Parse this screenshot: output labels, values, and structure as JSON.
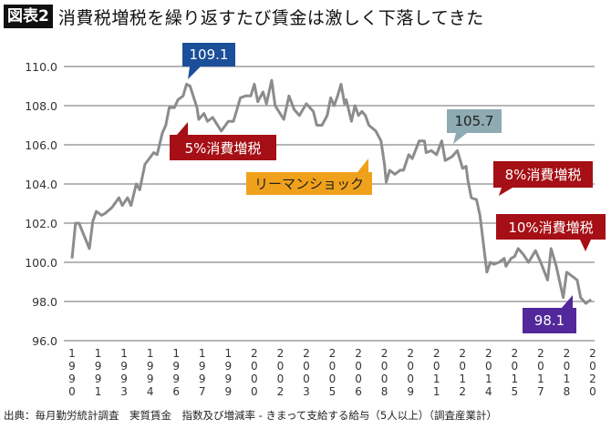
{
  "figure_label": "図表2",
  "title": "消費税増税を繰り返すたび賃金は激しく下落してきた",
  "source": "出典：毎月勤労統計調査　実質賃金　指数及び増減率 - きまって支給する給与（5人以上）（調査産業計）",
  "colors": {
    "line": "#8c8c8c",
    "grid": "#8a8a8a",
    "peak": "#1c4f9a",
    "tax": "#a50f15",
    "lehman": "#f0a11b",
    "mid": "#8eaab2",
    "last": "#52289a"
  },
  "annotations": [
    {
      "id": "peak",
      "text": "109.1",
      "color_key": "peak",
      "text_color": "#ffffff"
    },
    {
      "id": "tax5",
      "text": "5%消費増税",
      "color_key": "tax",
      "text_color": "#ffffff"
    },
    {
      "id": "lehman",
      "text": "リーマンショック",
      "color_key": "lehman",
      "text_color": "#222222"
    },
    {
      "id": "mid",
      "text": "105.7",
      "color_key": "mid",
      "text_color": "#222222"
    },
    {
      "id": "tax8",
      "text": "8%消費増税",
      "color_key": "tax",
      "text_color": "#ffffff"
    },
    {
      "id": "tax10",
      "text": "10%消費増税",
      "color_key": "tax",
      "text_color": "#ffffff"
    },
    {
      "id": "last",
      "text": "98.1",
      "color_key": "last",
      "text_color": "#ffffff"
    }
  ],
  "chart_data": {
    "type": "line",
    "title": "消費税増税を繰り返すたび賃金は激しく下落してきた",
    "xlabel": "",
    "ylabel": "",
    "ylim": [
      96.0,
      110.0
    ],
    "xlim": [
      1990,
      2020
    ],
    "grid": true,
    "yticks": [
      "96.0",
      "98.0",
      "100.0",
      "102.0",
      "104.0",
      "106.0",
      "108.0",
      "110.0"
    ],
    "xtick_labels": [
      "1990",
      "1991",
      "1993",
      "1994",
      "1996",
      "1997",
      "1999",
      "2000",
      "2002",
      "2003",
      "2005",
      "2006",
      "2008",
      "2009",
      "2011",
      "2012",
      "2014",
      "2015",
      "2017",
      "2018",
      "2020"
    ],
    "x": [
      1990.0,
      1990.2,
      1990.4,
      1991.0,
      1991.2,
      1991.4,
      1991.7,
      1991.9,
      1992.3,
      1992.7,
      1992.9,
      1993.2,
      1993.4,
      1993.7,
      1993.9,
      1994.2,
      1994.7,
      1994.9,
      1995.2,
      1995.4,
      1995.6,
      1995.9,
      1996.1,
      1996.4,
      1996.6,
      1996.8,
      1997.2,
      1997.3,
      1997.6,
      1997.8,
      1998.1,
      1998.6,
      1999.0,
      1999.3,
      1999.7,
      2000.0,
      2000.3,
      2000.5,
      2000.7,
      2001.0,
      2001.2,
      2001.5,
      2001.7,
      2002.2,
      2002.5,
      2002.8,
      2003.1,
      2003.5,
      2003.9,
      2004.1,
      2004.4,
      2004.7,
      2004.9,
      2005.1,
      2005.3,
      2005.5,
      2005.7,
      2005.8,
      2006.1,
      2006.3,
      2006.5,
      2006.7,
      2006.9,
      2007.1,
      2007.5,
      2007.8,
      2008.0,
      2008.1,
      2008.3,
      2008.6,
      2008.9,
      2009.1,
      2009.4,
      2009.6,
      2010.0,
      2010.3,
      2010.4,
      2010.7,
      2011.0,
      2011.3,
      2011.5,
      2011.9,
      2012.2,
      2012.5,
      2012.7,
      2012.8,
      2013.0,
      2013.3,
      2013.5,
      2013.9,
      2014.1,
      2014.3,
      2014.6,
      2014.9,
      2015.0,
      2015.3,
      2015.5,
      2015.7,
      2016.0,
      2016.3,
      2016.7,
      2017.0,
      2017.4,
      2017.6,
      2017.9,
      2018.3,
      2018.5,
      2018.8,
      2019.1,
      2019.3,
      2019.6,
      2019.9
    ],
    "series": [
      {
        "values": [
          100.2,
          102.0,
          102.0,
          100.7,
          102.1,
          102.6,
          102.4,
          102.5,
          102.8,
          103.3,
          102.9,
          103.3,
          102.9,
          104.0,
          103.7,
          105.0,
          105.6,
          105.5,
          106.6,
          107.0,
          107.9,
          107.9,
          108.3,
          108.5,
          109.1,
          109.0,
          107.9,
          107.3,
          107.6,
          107.2,
          107.4,
          106.7,
          107.2,
          107.2,
          108.4,
          108.5,
          108.5,
          109.1,
          108.2,
          108.7,
          108.1,
          109.3,
          108.0,
          107.3,
          108.5,
          107.8,
          107.5,
          108.1,
          107.7,
          107.0,
          107.0,
          107.5,
          108.4,
          108.0,
          108.5,
          109.1,
          108.1,
          108.3,
          107.2,
          108.0,
          107.5,
          107.7,
          107.5,
          107.0,
          106.7,
          106.2,
          105.0,
          104.1,
          104.7,
          104.5,
          104.7,
          104.7,
          105.5,
          105.3,
          106.2,
          106.2,
          105.6,
          105.7,
          105.5,
          106.2,
          105.2,
          105.4,
          105.7,
          104.8,
          104.9,
          104.2,
          103.3,
          103.2,
          102.4,
          99.5,
          100.0,
          99.9,
          100.0,
          100.2,
          99.8,
          100.2,
          100.3,
          100.7,
          100.4,
          100.0,
          100.6,
          100.0,
          99.1,
          100.7,
          99.8,
          98.2,
          99.5,
          99.3,
          99.1,
          98.2,
          97.9,
          98.1
        ]
      }
    ]
  }
}
